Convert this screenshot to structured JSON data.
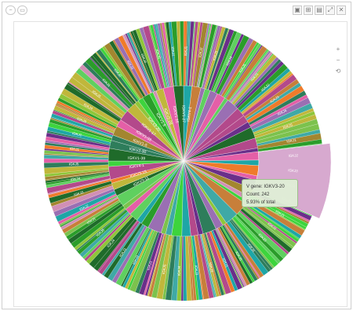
{
  "toolbar": {
    "left_buttons": [
      "−",
      "▭"
    ],
    "right_buttons": [
      {
        "icon": "save-icon",
        "glyph": "▣"
      },
      {
        "icon": "table-icon",
        "glyph": "⊞"
      },
      {
        "icon": "chart-icon",
        "glyph": "▤"
      },
      {
        "icon": "expand-icon",
        "glyph": "⤢"
      },
      {
        "icon": "close-icon",
        "glyph": "✕"
      }
    ],
    "side_buttons": [
      {
        "icon": "zoom-in-icon",
        "glyph": "+"
      },
      {
        "icon": "zoom-out-icon",
        "glyph": "−"
      },
      {
        "icon": "reset-icon",
        "glyph": "⟲"
      }
    ]
  },
  "tooltip": {
    "line1": "V gene: IGKV3-20",
    "line2": "Count: 242",
    "line3": "5.93% of total"
  },
  "chart_data": {
    "type": "sunburst",
    "title": "",
    "inner_ring_labels": [
      "IGKV3-11",
      "IGKV3-15",
      "IGKV4-1",
      "IGKV1-39",
      "IGKV2-30",
      "IGKV1-5",
      "IGKV1-33",
      "IGKV1-17",
      "IGKV3-20",
      "IGKV1-9",
      "IGKV2-28",
      "IGKV1-16",
      "IGKV1-27",
      "IGKV4-1"
    ],
    "outer_ring_labels": [
      "IGKJ1",
      "IGKJ2",
      "IGKJ3",
      "IGKJ4",
      "IGKJ5"
    ],
    "highlighted": {
      "label": "IGKV3-20",
      "count": 242,
      "percent_of_total": 5.93
    },
    "palette": [
      "#3dd43d",
      "#2a9d2a",
      "#1f6b2a",
      "#8fc63a",
      "#b3498b",
      "#c77f3a",
      "#3fa9a6",
      "#9a6fb3",
      "#5fd05f",
      "#d18fb5",
      "#7cc24d",
      "#a3862f",
      "#2e7d5b",
      "#6a2f8a",
      "#c0b73b",
      "#e45fa7",
      "#ef7b2a",
      "#1ea6a6"
    ]
  }
}
